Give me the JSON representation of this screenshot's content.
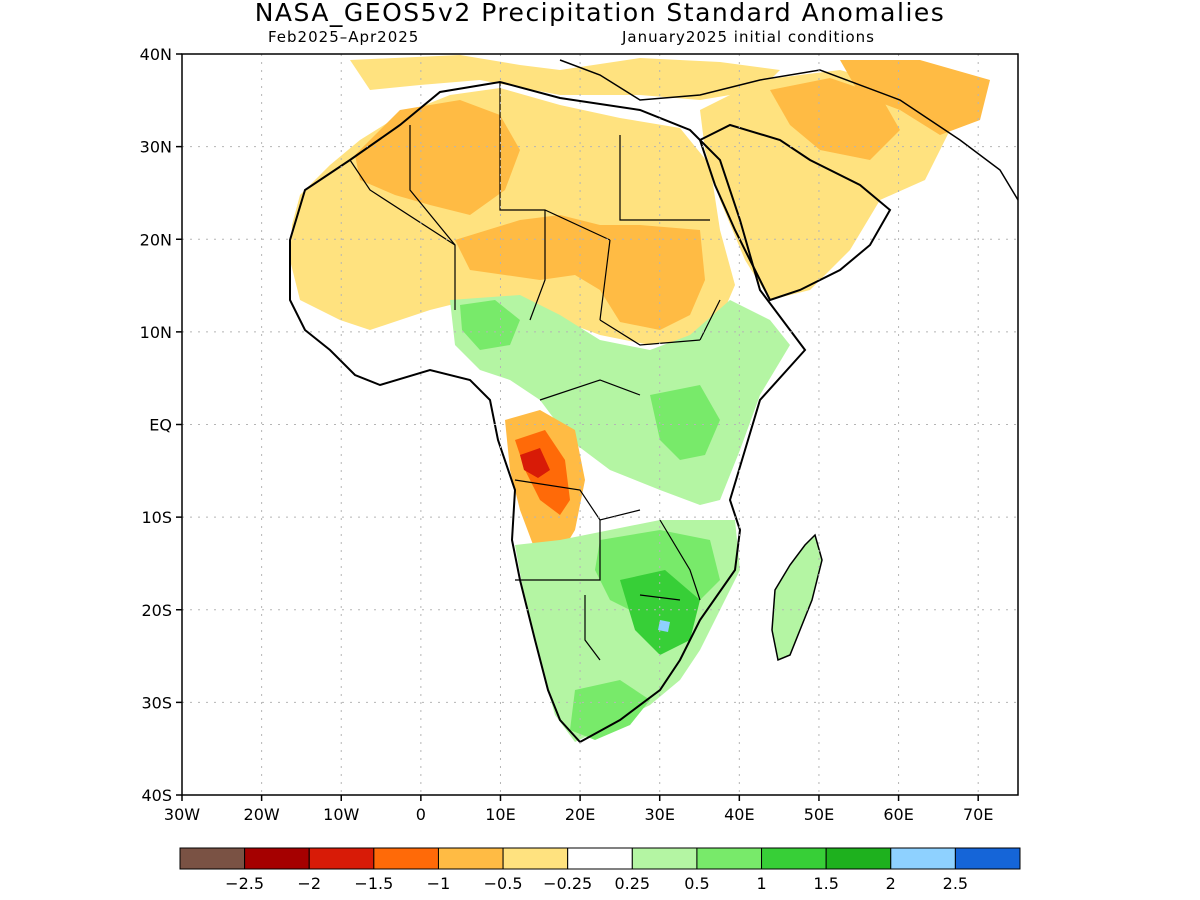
{
  "header": {
    "title": "NASA_GEOS5v2 Precipitation Standard Anomalies",
    "period": "Feb2025–Apr2025",
    "init": "January2025 initial conditions"
  },
  "axes": {
    "lat_labels": [
      "40N",
      "30N",
      "20N",
      "10N",
      "EQ",
      "10S",
      "20S",
      "30S",
      "40S"
    ],
    "lat_values": [
      40,
      30,
      20,
      10,
      0,
      -10,
      -20,
      -30,
      -40
    ],
    "lon_labels": [
      "30W",
      "20W",
      "10W",
      "0",
      "10E",
      "20E",
      "30E",
      "40E",
      "50E",
      "60E",
      "70E"
    ],
    "lon_values": [
      -30,
      -20,
      -10,
      0,
      10,
      20,
      30,
      40,
      50,
      60,
      70
    ],
    "lon_range": [
      -30,
      75
    ],
    "lat_range": [
      -40,
      40
    ]
  },
  "legend": {
    "labels": [
      "−2.5",
      "−2",
      "−1.5",
      "−1",
      "−0.5",
      "−0.25",
      "0.25",
      "0.5",
      "1",
      "1.5",
      "2",
      "2.5"
    ],
    "colors": [
      "#7a5244",
      "#a50000",
      "#d81b07",
      "#ff6a08",
      "#ffbb44",
      "#ffe27f",
      "#ffffff",
      "#b4f5a3",
      "#78ea6a",
      "#37cf37",
      "#1eb11e",
      "#8ed1ff",
      "#1565d8"
    ]
  },
  "map": {
    "colors": {
      "dry1": "#ffe27f",
      "dry2": "#ffbb44",
      "dry3": "#ff6a08",
      "dry4": "#d81b07",
      "wet1": "#b4f5a3",
      "wet2": "#78ea6a",
      "wet3": "#37cf37",
      "wet4": "#8ed1ff"
    }
  }
}
